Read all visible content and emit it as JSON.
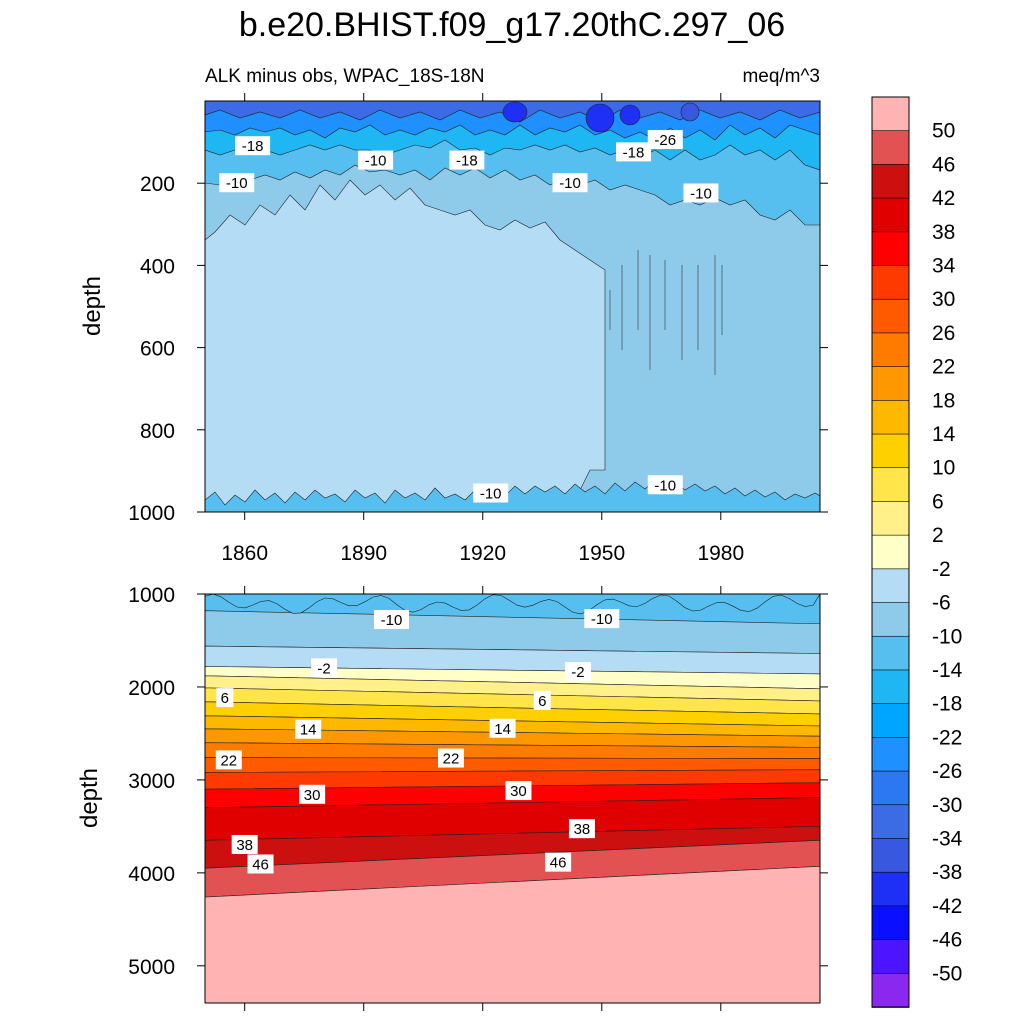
{
  "chart_data": {
    "type": "heatmap",
    "title": "b.e20.BHIST.f09_g17.20thC.297_06",
    "subtitle_left": "ALK minus obs, WPAC_18S-18N",
    "subtitle_right": "meq/m^3",
    "x_ticks": [
      "1860",
      "1890",
      "1920",
      "1950",
      "1980"
    ],
    "x_values": [
      1860,
      1890,
      1920,
      1950,
      1980
    ],
    "x_range": [
      1850,
      2005
    ],
    "top_panel": {
      "ylabel": "depth",
      "ylim": [
        0,
        1000
      ],
      "y_ticks": [
        "200",
        "400",
        "600",
        "800",
        "1000"
      ],
      "y_values": [
        200,
        400,
        600,
        800,
        1000
      ],
      "contour_labels": [
        {
          "text": "-18",
          "x": 1862,
          "y": 110
        },
        {
          "text": "-10",
          "x": 1858,
          "y": 200
        },
        {
          "text": "-10",
          "x": 1893,
          "y": 145
        },
        {
          "text": "-18",
          "x": 1916,
          "y": 145
        },
        {
          "text": "-10",
          "x": 1942,
          "y": 200
        },
        {
          "text": "-18",
          "x": 1958,
          "y": 125
        },
        {
          "text": "-26",
          "x": 1966,
          "y": 95
        },
        {
          "text": "-10",
          "x": 1975,
          "y": 225
        },
        {
          "text": "-10",
          "x": 1922,
          "y": 955
        },
        {
          "text": "-10",
          "x": 1966,
          "y": 935
        }
      ]
    },
    "bottom_panel": {
      "ylabel": "depth",
      "ylim": [
        1000,
        5400
      ],
      "y_ticks": [
        "1000",
        "2000",
        "3000",
        "4000",
        "5000"
      ],
      "y_values": [
        1000,
        2000,
        3000,
        4000,
        5000
      ],
      "contour_labels": [
        {
          "text": "-10",
          "x": 1897,
          "y": 1280
        },
        {
          "text": "-10",
          "x": 1950,
          "y": 1270
        },
        {
          "text": "-2",
          "x": 1880,
          "y": 1800
        },
        {
          "text": "-2",
          "x": 1944,
          "y": 1840
        },
        {
          "text": "6",
          "x": 1855,
          "y": 2120
        },
        {
          "text": "6",
          "x": 1935,
          "y": 2150
        },
        {
          "text": "14",
          "x": 1876,
          "y": 2460
        },
        {
          "text": "14",
          "x": 1925,
          "y": 2450
        },
        {
          "text": "22",
          "x": 1856,
          "y": 2790
        },
        {
          "text": "22",
          "x": 1912,
          "y": 2770
        },
        {
          "text": "30",
          "x": 1877,
          "y": 3160
        },
        {
          "text": "30",
          "x": 1929,
          "y": 3120
        },
        {
          "text": "38",
          "x": 1860,
          "y": 3700
        },
        {
          "text": "38",
          "x": 1945,
          "y": 3530
        },
        {
          "text": "46",
          "x": 1864,
          "y": 3910
        },
        {
          "text": "46",
          "x": 1939,
          "y": 3890
        }
      ]
    },
    "colorbar": {
      "labels": [
        "50",
        "46",
        "42",
        "38",
        "34",
        "30",
        "26",
        "22",
        "18",
        "14",
        "10",
        "6",
        "2",
        "-2",
        "-6",
        "-10",
        "-14",
        "-18",
        "-22",
        "-26",
        "-30",
        "-34",
        "-38",
        "-42",
        "-46",
        "-50"
      ],
      "colors": [
        "#ffb3b3",
        "#e35252",
        "#cc1010",
        "#e00000",
        "#ff0000",
        "#ff3a00",
        "#ff5a00",
        "#ff7b00",
        "#ff9800",
        "#ffb800",
        "#ffd000",
        "#ffe44a",
        "#fff08a",
        "#ffffc8",
        "#b4dcf5",
        "#8ecbea",
        "#56bfef",
        "#1fb7f3",
        "#00a5ff",
        "#1e90ff",
        "#2c78f0",
        "#3c6be6",
        "#3858e0",
        "#1e30f5",
        "#0a10ff",
        "#4c14ff",
        "#8a28f0"
      ]
    }
  }
}
